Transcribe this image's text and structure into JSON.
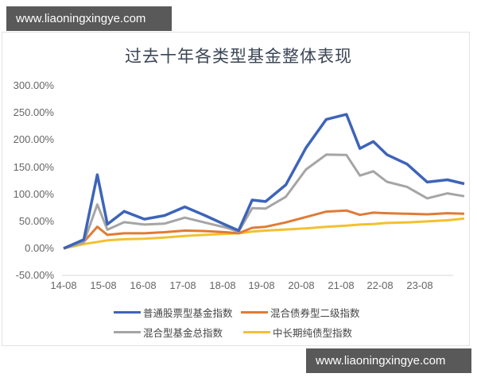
{
  "watermark": {
    "top": "www.liaoningxingye.com",
    "bottom": "www.liaoningxingye.com"
  },
  "chart_data": {
    "type": "line",
    "title": "过去十年各类型基金整体表现",
    "xlabel": "",
    "ylabel": "",
    "ylim": [
      -50,
      300
    ],
    "yticks": [
      "300.00%",
      "250.00%",
      "200.00%",
      "150.00%",
      "100.00%",
      "50.00%",
      "0.00%",
      "-50.00%"
    ],
    "categories": [
      "14-08",
      "15-08",
      "16-08",
      "17-08",
      "18-08",
      "19-08",
      "20-08",
      "21-08",
      "22-08",
      "23-08"
    ],
    "grid": false,
    "legend_position": "bottom",
    "x": [
      "14-08",
      "15-02",
      "15-06",
      "15-09",
      "16-02",
      "16-08",
      "17-02",
      "17-08",
      "18-02",
      "18-08",
      "18-12",
      "19-04",
      "19-08",
      "20-02",
      "20-08",
      "21-02",
      "21-08",
      "21-12",
      "22-04",
      "22-08",
      "23-02",
      "23-08",
      "24-02",
      "24-07"
    ],
    "series": [
      {
        "name": "普通股票型基金指数",
        "color": "#3e64b8",
        "values": [
          0,
          20,
          140,
          45,
          65,
          50,
          60,
          80,
          65,
          45,
          30,
          85,
          85,
          120,
          190,
          240,
          245,
          180,
          195,
          175,
          160,
          125,
          125,
          115
        ]
      },
      {
        "name": "混合债券型二级指数",
        "color": "#e07b35",
        "values": [
          0,
          12,
          40,
          25,
          28,
          28,
          30,
          33,
          32,
          30,
          28,
          38,
          40,
          48,
          58,
          68,
          70,
          62,
          66,
          65,
          64,
          63,
          65,
          64
        ]
      },
      {
        "name": "混合型基金总指数",
        "color": "#a5a5a5",
        "values": [
          0,
          15,
          85,
          35,
          45,
          40,
          45,
          60,
          52,
          40,
          28,
          70,
          72,
          98,
          150,
          175,
          170,
          130,
          140,
          125,
          118,
          95,
          100,
          92
        ]
      },
      {
        "name": "中长期纯债型指数",
        "color": "#f2c12e",
        "values": [
          0,
          8,
          12,
          15,
          17,
          18,
          20,
          23,
          25,
          27,
          28,
          31,
          33,
          35,
          37,
          40,
          42,
          44,
          45,
          47,
          48,
          50,
          52,
          55
        ]
      }
    ]
  },
  "legend": [
    {
      "label": "普通股票型基金指数",
      "color": "#3e64b8"
    },
    {
      "label": "混合债券型二级指数",
      "color": "#e07b35"
    },
    {
      "label": "混合型基金总指数",
      "color": "#a5a5a5"
    },
    {
      "label": "中长期纯债型指数",
      "color": "#f2c12e"
    }
  ]
}
